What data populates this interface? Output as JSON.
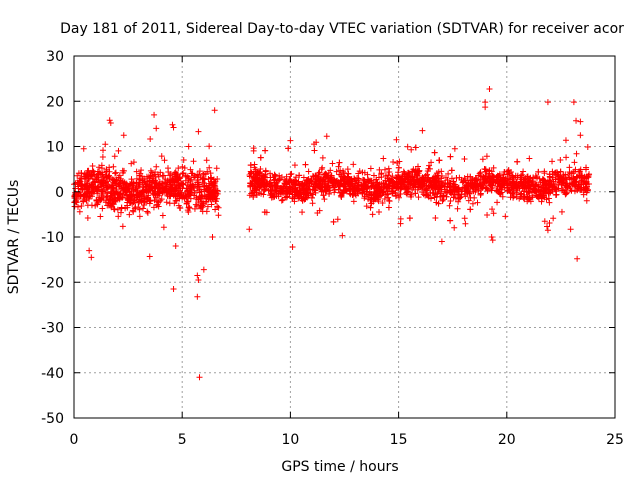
{
  "chart_data": {
    "type": "scatter",
    "title": "Day 181 of 2011, Sidereal Day-to-day VTEC variation (SDTVAR) for receiver acor",
    "xlabel": "GPS time / hours",
    "ylabel": "SDTVAR / TECUs",
    "xlim": [
      0,
      25
    ],
    "ylim": [
      -50,
      30
    ],
    "xticks": [
      "0",
      "5",
      "10",
      "15",
      "20",
      "25"
    ],
    "yticks": [
      "30",
      "20",
      "10",
      "0",
      "-10",
      "-20",
      "-30",
      "-40",
      "-50"
    ],
    "xtick_values": [
      0,
      5,
      10,
      15,
      20,
      25
    ],
    "ytick_values": [
      30,
      20,
      10,
      0,
      -10,
      -20,
      -30,
      -40,
      -50
    ],
    "grid": true,
    "marker": "+",
    "color": "#ff0000",
    "segments": [
      {
        "x_start": 0.0,
        "x_end": 6.7,
        "center": 0.5,
        "spread": 3.5
      },
      {
        "x_start": 8.1,
        "x_end": 23.8,
        "center": 1.5,
        "spread": 2.5
      }
    ],
    "outliers": [
      {
        "x": 0.45,
        "y": 9.5
      },
      {
        "x": 0.7,
        "y": -13.0
      },
      {
        "x": 0.8,
        "y": -14.5
      },
      {
        "x": 1.65,
        "y": 15.8
      },
      {
        "x": 1.7,
        "y": 15.2
      },
      {
        "x": 2.3,
        "y": 12.5
      },
      {
        "x": 3.5,
        "y": -14.3
      },
      {
        "x": 3.7,
        "y": 17.0
      },
      {
        "x": 3.8,
        "y": 14.0
      },
      {
        "x": 4.55,
        "y": 14.8
      },
      {
        "x": 4.6,
        "y": 14.2
      },
      {
        "x": 4.6,
        "y": -21.5
      },
      {
        "x": 4.7,
        "y": -12.0
      },
      {
        "x": 5.3,
        "y": 10.0
      },
      {
        "x": 5.75,
        "y": 13.3
      },
      {
        "x": 5.7,
        "y": -18.5
      },
      {
        "x": 5.75,
        "y": -19.5
      },
      {
        "x": 5.7,
        "y": -23.2
      },
      {
        "x": 6.0,
        "y": -17.2
      },
      {
        "x": 5.8,
        "y": -41.0
      },
      {
        "x": 6.5,
        "y": 18.0
      },
      {
        "x": 6.4,
        "y": -10.0
      },
      {
        "x": 8.1,
        "y": -8.3
      },
      {
        "x": 10.0,
        "y": 11.3
      },
      {
        "x": 10.1,
        "y": -12.2
      },
      {
        "x": 11.5,
        "y": 7.5
      },
      {
        "x": 12.4,
        "y": -9.7
      },
      {
        "x": 13.8,
        "y": -5.0
      },
      {
        "x": 14.9,
        "y": 11.5
      },
      {
        "x": 15.1,
        "y": -6.0
      },
      {
        "x": 16.1,
        "y": 13.5
      },
      {
        "x": 16.5,
        "y": 6.5
      },
      {
        "x": 16.7,
        "y": -5.8
      },
      {
        "x": 17.0,
        "y": -11.0
      },
      {
        "x": 17.6,
        "y": 9.5
      },
      {
        "x": 19.0,
        "y": 18.7
      },
      {
        "x": 19.0,
        "y": 19.8
      },
      {
        "x": 19.2,
        "y": 22.7
      },
      {
        "x": 19.3,
        "y": -10.0
      },
      {
        "x": 19.35,
        "y": -10.7
      },
      {
        "x": 21.9,
        "y": 19.8
      },
      {
        "x": 21.9,
        "y": -8.5
      },
      {
        "x": 22.95,
        "y": -8.3
      },
      {
        "x": 23.1,
        "y": 19.8
      },
      {
        "x": 23.2,
        "y": 15.7
      },
      {
        "x": 23.4,
        "y": 15.5
      },
      {
        "x": 23.4,
        "y": 12.5
      },
      {
        "x": 23.25,
        "y": -14.8
      }
    ]
  }
}
